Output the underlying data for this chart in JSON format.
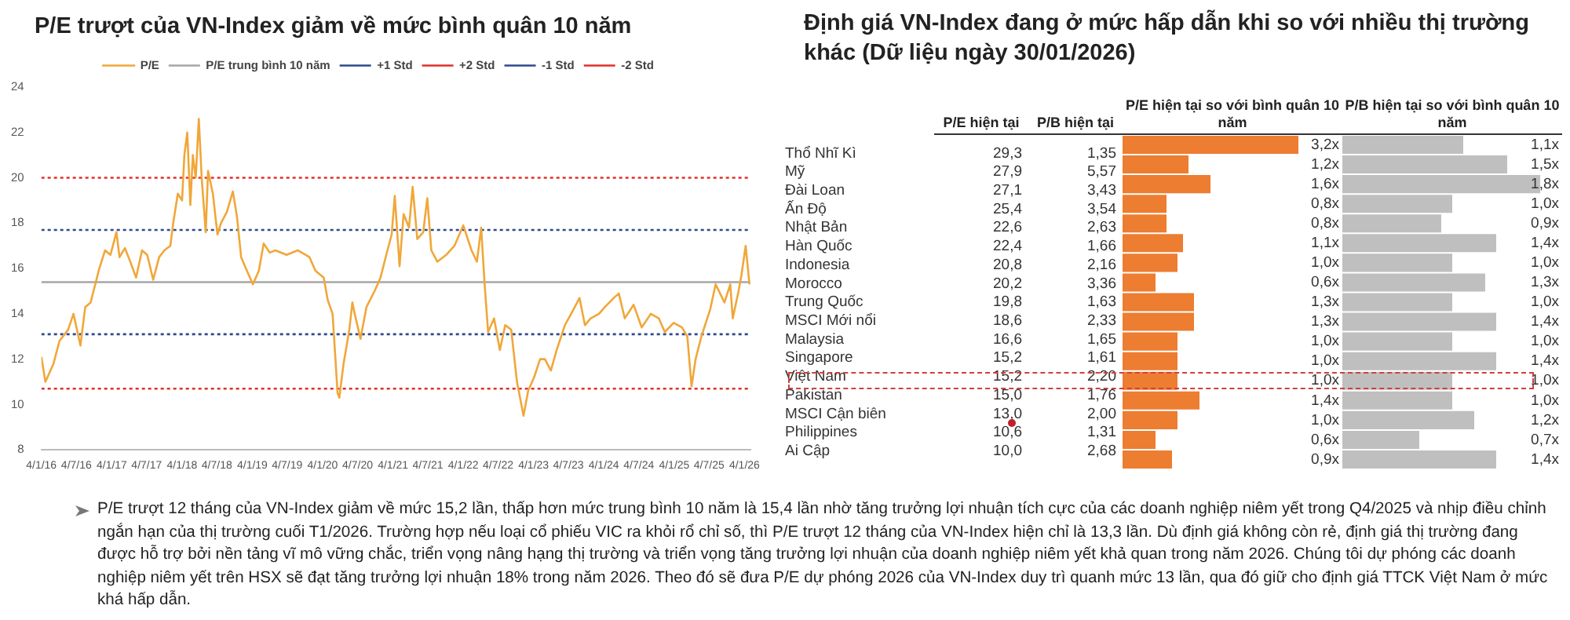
{
  "chart_data": [
    {
      "type": "line",
      "title": "P/E trượt của VN-Index giảm về mức bình quân 10 năm",
      "legend": "top",
      "grid": false,
      "line_style": "solid",
      "marker": "none",
      "x": [
        "2016-01-04",
        "2016-01-25",
        "2016-03-07",
        "2016-04-07",
        "2016-05-22",
        "2016-06-19",
        "2016-07-25",
        "2016-08-19",
        "2016-09-16",
        "2016-10-07",
        "2016-10-31",
        "2016-11-30",
        "2016-12-28",
        "2017-01-28",
        "2017-02-13",
        "2017-03-13",
        "2017-04-10",
        "2017-05-10",
        "2017-06-10",
        "2017-07-07",
        "2017-08-07",
        "2017-09-07",
        "2017-10-04",
        "2017-11-04",
        "2017-11-19",
        "2017-12-13",
        "2018-01-04",
        "2018-01-16",
        "2018-01-31",
        "2018-02-16",
        "2018-03-01",
        "2018-03-16",
        "2018-04-01",
        "2018-04-16",
        "2018-05-07",
        "2018-05-19",
        "2018-06-13",
        "2018-07-07",
        "2018-07-25",
        "2018-08-25",
        "2018-09-25",
        "2018-10-16",
        "2018-11-07",
        "2018-12-07",
        "2019-01-07",
        "2019-02-07",
        "2019-03-04",
        "2019-04-04",
        "2019-05-04",
        "2019-07-01",
        "2019-08-28",
        "2019-10-28",
        "2019-11-28",
        "2020-01-10",
        "2020-01-31",
        "2020-02-25",
        "2020-03-22",
        "2020-03-31",
        "2020-04-22",
        "2020-05-22",
        "2020-06-07",
        "2020-06-19",
        "2020-07-19",
        "2020-08-19",
        "2020-09-30",
        "2020-10-31",
        "2020-11-30",
        "2020-12-28",
        "2021-01-13",
        "2021-02-07",
        "2021-02-28",
        "2021-03-28",
        "2021-04-16",
        "2021-05-10",
        "2021-06-10",
        "2021-07-01",
        "2021-07-22",
        "2021-08-22",
        "2021-10-07",
        "2021-11-19",
        "2022-01-04",
        "2022-02-16",
        "2022-03-16",
        "2022-04-07",
        "2022-04-25",
        "2022-05-13",
        "2022-06-13",
        "2022-07-13",
        "2022-08-10",
        "2022-09-10",
        "2022-10-10",
        "2022-11-13",
        "2022-12-07",
        "2023-01-07",
        "2023-02-07",
        "2023-03-04",
        "2023-04-04",
        "2023-05-04",
        "2023-06-16",
        "2023-07-31",
        "2023-08-31",
        "2023-09-28",
        "2023-10-28",
        "2023-12-10",
        "2024-01-10",
        "2024-02-25",
        "2024-03-22",
        "2024-04-22",
        "2024-06-07",
        "2024-07-19",
        "2024-09-04",
        "2024-10-16",
        "2024-11-16",
        "2025-01-01",
        "2025-02-13",
        "2025-03-13",
        "2025-04-04",
        "2025-04-25",
        "2025-05-25",
        "2025-07-10",
        "2025-08-07",
        "2025-09-22",
        "2025-10-22",
        "2025-11-04",
        "2025-12-04",
        "2025-12-19",
        "2026-01-10",
        "2026-01-30"
      ],
      "series": [
        {
          "name": "P/E",
          "color": "#f0a73a",
          "values": [
            12.1,
            11.0,
            11.8,
            12.8,
            13.3,
            14.0,
            12.6,
            14.3,
            14.5,
            15.2,
            16.0,
            16.8,
            16.6,
            17.6,
            16.5,
            16.9,
            16.3,
            15.6,
            16.8,
            16.6,
            15.5,
            16.5,
            16.8,
            17.0,
            18.0,
            19.3,
            19.0,
            21.0,
            22.0,
            18.8,
            21.0,
            20.0,
            22.6,
            20.0,
            17.6,
            20.3,
            19.3,
            17.5,
            18.0,
            18.5,
            19.4,
            18.3,
            16.5,
            15.9,
            15.3,
            15.9,
            17.1,
            16.7,
            16.8,
            16.6,
            16.8,
            16.5,
            15.9,
            15.6,
            14.6,
            14.0,
            10.5,
            10.3,
            11.8,
            13.3,
            14.5,
            14.0,
            12.9,
            14.3,
            15.0,
            15.6,
            16.6,
            17.5,
            19.2,
            16.1,
            18.4,
            17.8,
            19.6,
            17.3,
            17.6,
            19.1,
            16.8,
            16.3,
            16.6,
            17.0,
            17.9,
            16.8,
            16.3,
            17.8,
            15.3,
            13.2,
            13.8,
            12.4,
            13.5,
            13.3,
            11.0,
            9.5,
            10.6,
            11.2,
            12.0,
            12.0,
            11.5,
            12.4,
            13.5,
            14.2,
            14.7,
            13.5,
            13.8,
            14.0,
            14.3,
            14.7,
            14.9,
            13.8,
            14.4,
            13.4,
            14.0,
            13.8,
            13.2,
            13.6,
            13.4,
            13.0,
            10.8,
            12.0,
            13.0,
            14.2,
            15.3,
            14.5,
            15.3,
            13.8,
            15.0,
            15.7,
            17.0,
            15.3
          ]
        }
      ],
      "ref_lines": [
        {
          "axis": "y",
          "value": 15.4,
          "label": "P/E trung bình 10 năm",
          "color": "#a6a6a6",
          "line_style": "solid"
        },
        {
          "axis": "y",
          "value": 17.7,
          "label": "+1 Std",
          "color": "#2e4a8c",
          "line_style": "dotted"
        },
        {
          "axis": "y",
          "value": 20.0,
          "label": "+2 Std",
          "color": "#e0302a",
          "line_style": "dotted"
        },
        {
          "axis": "y",
          "value": 13.1,
          "label": "-1 Std",
          "color": "#2e4a8c",
          "line_style": "dotted"
        },
        {
          "axis": "y",
          "value": 10.7,
          "label": "-2 Std",
          "color": "#e0302a",
          "line_style": "dotted"
        }
      ],
      "xlim": [
        "2016-01-04",
        "2026-02-04"
      ],
      "xticks": [
        {
          "value": "2016-01-04",
          "label": "4/1/16"
        },
        {
          "value": "2016-07-04",
          "label": "4/7/16"
        },
        {
          "value": "2017-01-04",
          "label": "4/1/17"
        },
        {
          "value": "2017-07-04",
          "label": "4/7/17"
        },
        {
          "value": "2018-01-04",
          "label": "4/1/18"
        },
        {
          "value": "2018-07-04",
          "label": "4/7/18"
        },
        {
          "value": "2019-01-04",
          "label": "4/1/19"
        },
        {
          "value": "2019-07-04",
          "label": "4/7/19"
        },
        {
          "value": "2020-01-04",
          "label": "4/1/20"
        },
        {
          "value": "2020-07-04",
          "label": "4/7/20"
        },
        {
          "value": "2021-01-04",
          "label": "4/1/21"
        },
        {
          "value": "2021-07-04",
          "label": "4/7/21"
        },
        {
          "value": "2022-01-04",
          "label": "4/1/22"
        },
        {
          "value": "2022-07-04",
          "label": "4/7/22"
        },
        {
          "value": "2023-01-04",
          "label": "4/1/23"
        },
        {
          "value": "2023-07-04",
          "label": "4/7/23"
        },
        {
          "value": "2024-01-04",
          "label": "4/1/24"
        },
        {
          "value": "2024-07-04",
          "label": "4/7/24"
        },
        {
          "value": "2025-01-04",
          "label": "4/1/25"
        },
        {
          "value": "2025-07-04",
          "label": "4/7/25"
        },
        {
          "value": "2026-01-04",
          "label": "4/1/26"
        }
      ],
      "ylim": [
        8,
        24
      ],
      "yticks": [
        8,
        10,
        12,
        14,
        16,
        18,
        20,
        22,
        24
      ],
      "annotations": [
        "P/E trượt 12 tháng của VN-Index giảm về mức 15,2 lần, thấp hơn mức trung bình 10 năm là 15,4 lần nhờ tăng trưởng lợi nhuận tích cực của các doanh nghiệp niêm yết trong Q4/2025 và nhịp điều chỉnh ngắn hạn của thị trường cuối T1/2026. Trường hợp nếu loại cổ phiếu VIC ra khỏi rổ chỉ số, thì P/E trượt 12 tháng của VN-Index hiện chỉ là 13,3 lần. Dù định giá không còn rẻ, định giá thị trường đang được hỗ trợ bởi nền tảng vĩ mô vững chắc, triển vọng nâng hạng thị trường và triển vọng tăng trưởng lợi nhuận của doanh nghiệp niêm yết khả quan trong năm 2026. Chúng tôi dự phóng các doanh nghiệp niêm yết trên HSX sẽ đạt tăng trưởng lợi nhuận 18% trong năm 2026. Theo đó sẽ đưa P/E dự phóng 2026 của VN-Index duy trì quanh mức 13 lần, qua đó giữ cho định giá TTCK Việt Nam ở mức khá hấp dẫn."
      ]
    },
    {
      "type": "heatmap",
      "title": "Định giá VN-Index đang ở mức hấp dẫn khi so với nhiều thị trường khác (Dữ liệu ngày 30/01/2026)",
      "categories": [
        "P/E hiện tại",
        "P/B hiện tại"
      ],
      "y_categories": [
        "Thổ Nhĩ Kì",
        "Mỹ",
        "Đài Loan",
        "Ấn Độ",
        "Nhật Bản",
        "Hàn Quốc",
        "Indonesia",
        "Morocco",
        "Trung Quốc",
        "MSCI Mới nổi",
        "Malaysia",
        "Singapore",
        "Việt Nam",
        "Pakistan",
        "MSCI Cận biên",
        "Philippines",
        "Ai Cập"
      ],
      "cells": [
        [
          29.3,
          1.35
        ],
        [
          27.9,
          5.57
        ],
        [
          27.1,
          3.43
        ],
        [
          25.4,
          3.54
        ],
        [
          22.6,
          2.63
        ],
        [
          22.4,
          1.66
        ],
        [
          20.8,
          2.16
        ],
        [
          20.2,
          3.36
        ],
        [
          19.8,
          1.63
        ],
        [
          18.6,
          2.33
        ],
        [
          16.6,
          1.65
        ],
        [
          15.2,
          1.61
        ],
        [
          15.2,
          2.2
        ],
        [
          15.0,
          1.76
        ],
        [
          13.0,
          2.0
        ],
        [
          10.6,
          1.31
        ],
        [
          10.0,
          2.68
        ]
      ],
      "cell_labels": [
        [
          "29,3",
          "1,35"
        ],
        [
          "27,9",
          "5,57"
        ],
        [
          "27,1",
          "3,43"
        ],
        [
          "25,4",
          "3,54"
        ],
        [
          "22,6",
          "2,63"
        ],
        [
          "22,4",
          "1,66"
        ],
        [
          "20,8",
          "2,16"
        ],
        [
          "20,2",
          "3,36"
        ],
        [
          "19,8",
          "1,63"
        ],
        [
          "18,6",
          "2,33"
        ],
        [
          "16,6",
          "1,65"
        ],
        [
          "15,2",
          "1,61"
        ],
        [
          "15,2",
          "2,20"
        ],
        [
          "15,0",
          "1,76"
        ],
        [
          "13,0",
          "2,00"
        ],
        [
          "10,6",
          "1,31"
        ],
        [
          "10,0",
          "2,68"
        ]
      ]
    },
    {
      "type": "bar",
      "orientation": "horizontal",
      "title": "P/E hiện tại so với bình quân 10 năm",
      "tick_labels": false,
      "categories": [
        null,
        null,
        null,
        null,
        null,
        null,
        null,
        null,
        null,
        null,
        null,
        null,
        null,
        null,
        null,
        null,
        null
      ],
      "color": "#ed7d31",
      "values": [
        3.2,
        1.2,
        1.6,
        0.8,
        0.8,
        1.1,
        1.0,
        0.6,
        1.3,
        1.3,
        1.0,
        1.0,
        1.0,
        1.4,
        1.0,
        0.6,
        0.9
      ],
      "value_labels": [
        "3,2x",
        "1,2x",
        "1,6x",
        "0,8x",
        "0,8x",
        "1,1x",
        "1,0x",
        "0,6x",
        "1,3x",
        "1,3x",
        "1,0x",
        "1,0x",
        "1,0x",
        "1,4x",
        "1,0x",
        "0,6x",
        "0,9x"
      ]
    },
    {
      "type": "bar",
      "orientation": "horizontal",
      "title": "P/B hiện tại so với bình quân 10 năm",
      "tick_labels": false,
      "categories": [
        null,
        null,
        null,
        null,
        null,
        null,
        null,
        null,
        null,
        null,
        null,
        null,
        null,
        null,
        null,
        null,
        null
      ],
      "color": "#bfbfbf",
      "values": [
        1.1,
        1.5,
        1.8,
        1.0,
        0.9,
        1.4,
        1.0,
        1.3,
        1.0,
        1.4,
        1.0,
        1.4,
        1.0,
        1.0,
        1.2,
        0.7,
        1.4
      ],
      "value_labels": [
        "1,1x",
        "1,5x",
        "1,8x",
        "1,0x",
        "0,9x",
        "1,4x",
        "1,0x",
        "1,3x",
        "1,0x",
        "1,4x",
        "1,0x",
        "1,4x",
        "1,0x",
        "1,0x",
        "1,2x",
        "0,7x",
        "1,4x"
      ]
    }
  ]
}
